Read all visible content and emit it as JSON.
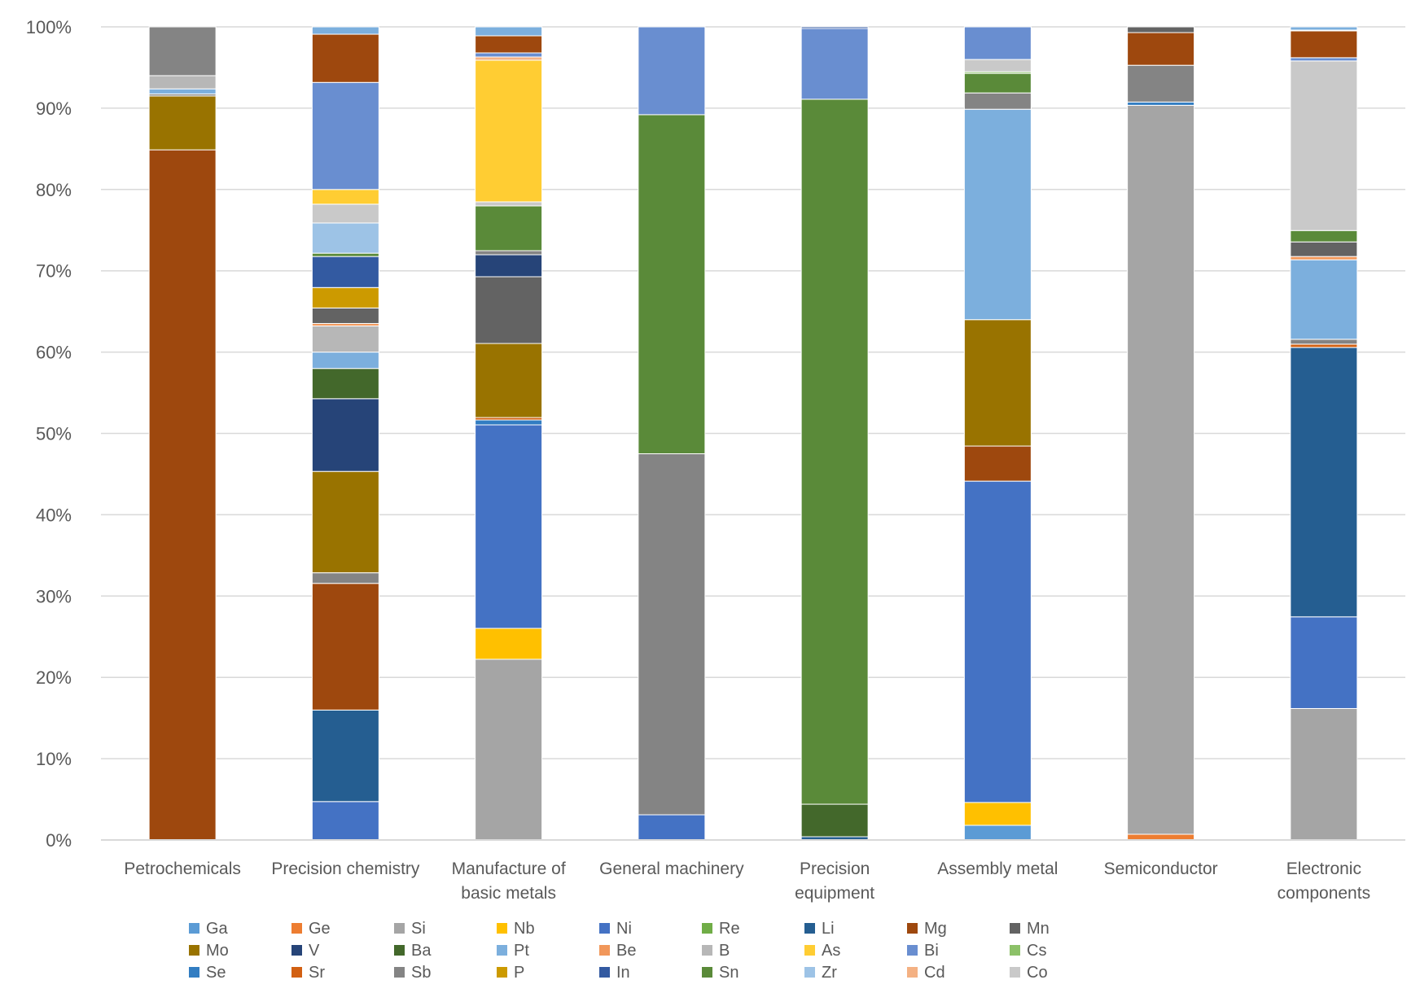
{
  "chart_data": {
    "type": "bar",
    "stacked": true,
    "normalized": true,
    "title": "",
    "xlabel": "",
    "ylabel": "",
    "ylim": [
      0,
      100
    ],
    "yticks": [
      "0%",
      "10%",
      "20%",
      "30%",
      "40%",
      "50%",
      "60%",
      "70%",
      "80%",
      "90%",
      "100%"
    ],
    "grid": true,
    "legend_position": "bottom",
    "categories": [
      [
        "Petrochemicals"
      ],
      [
        "Precision chemistry"
      ],
      [
        "Manufacture of",
        "basic metals"
      ],
      [
        "General machinery"
      ],
      [
        "Precision",
        "equipment"
      ],
      [
        "Assembly metal"
      ],
      [
        "Semiconductor"
      ],
      [
        "Electronic",
        "components"
      ]
    ],
    "series": [
      {
        "name": "Ga",
        "color": "#5B9BD5",
        "values": [
          0,
          0,
          0,
          0,
          0,
          1.8,
          0,
          0
        ]
      },
      {
        "name": "Ge",
        "color": "#ED7D31",
        "values": [
          0,
          0,
          0,
          0,
          0,
          0,
          0.7,
          0
        ]
      },
      {
        "name": "Si",
        "color": "#A5A5A5",
        "values": [
          0,
          0,
          22.2,
          0,
          0,
          0,
          89.2,
          16.2
        ]
      },
      {
        "name": "Nb",
        "color": "#FFC000",
        "values": [
          0,
          0,
          3.8,
          0,
          0,
          2.8,
          0,
          0
        ]
      },
      {
        "name": "Ni",
        "color": "#4472C4",
        "values": [
          0,
          4.7,
          25.0,
          3.1,
          0,
          39.4,
          0,
          11.3
        ]
      },
      {
        "name": "Re",
        "color": "#70AD47",
        "values": [
          0,
          0,
          0,
          0,
          0,
          0,
          0,
          0
        ]
      },
      {
        "name": "Li",
        "color": "#255E91",
        "values": [
          0,
          11.2,
          0,
          0,
          0.4,
          0,
          0,
          33.2
        ]
      },
      {
        "name": "Mg",
        "color": "#9E480E",
        "values": [
          67.9,
          15.5,
          0,
          0,
          0,
          4.3,
          0,
          0
        ]
      },
      {
        "name": "Mn",
        "color": "#636363",
        "values": [
          0,
          0,
          0,
          0,
          0,
          0,
          0,
          0
        ]
      },
      {
        "name": "Mo",
        "color": "#997300",
        "values": [
          5.3,
          0,
          0,
          0,
          0,
          15.5,
          0,
          0
        ]
      },
      {
        "name": "V",
        "color": "#264478",
        "values": [
          0,
          0,
          0,
          0,
          0,
          0,
          0,
          0
        ]
      },
      {
        "name": "Ba",
        "color": "#43682B",
        "values": [
          0,
          0,
          0,
          0,
          4.0,
          0,
          0,
          0
        ]
      },
      {
        "name": "Pt",
        "color": "#7CAFDD",
        "values": [
          0,
          0,
          0,
          0,
          0,
          0,
          0,
          0
        ]
      },
      {
        "name": "Be",
        "color": "#F1975A",
        "values": [
          0,
          0,
          0,
          0,
          0,
          0,
          0,
          0
        ]
      },
      {
        "name": "B",
        "color": "#B7B7B7",
        "values": [
          0,
          0,
          0,
          0,
          0,
          0,
          0,
          0
        ]
      },
      {
        "name": "As",
        "color": "#FFCD33",
        "values": [
          0,
          0,
          0,
          0,
          0,
          0,
          0,
          0
        ]
      },
      {
        "name": "Bi",
        "color": "#698ED0",
        "values": [
          0,
          0,
          0,
          0,
          0,
          0,
          0,
          0
        ]
      },
      {
        "name": "Cs",
        "color": "#8CC168",
        "values": [
          0,
          0,
          0,
          0,
          0,
          0,
          0,
          0
        ]
      },
      {
        "name": "Se",
        "color": "#327DC2",
        "values": [
          0,
          0,
          0.6,
          0,
          0,
          0,
          0.4,
          0
        ]
      },
      {
        "name": "Sr",
        "color": "#D26012",
        "values": [
          0,
          0,
          0.3,
          0,
          0,
          0,
          0,
          0.4
        ]
      },
      {
        "name": "Sb",
        "color": "#848484",
        "values": [
          0.2,
          1.3,
          0,
          44.4,
          0,
          0,
          0,
          0.6
        ]
      },
      {
        "name": "P",
        "color": "#CC9A00",
        "values": [
          0,
          0,
          0,
          0,
          0,
          0,
          0,
          0
        ]
      },
      {
        "name": "In",
        "color": "#335AA1",
        "values": [
          0,
          0,
          0,
          0,
          0,
          0,
          0,
          0
        ]
      },
      {
        "name": "Sn",
        "color": "#5A8A39",
        "values": [
          0,
          0,
          0,
          41.7,
          86.7,
          0,
          0,
          0
        ]
      },
      {
        "name": "Zr",
        "color": "#9DC3E6",
        "values": [
          0,
          0,
          0,
          0,
          0,
          0,
          0,
          0
        ]
      },
      {
        "name": "Cd",
        "color": "#F4B183",
        "values": [
          0,
          0,
          0,
          0,
          0,
          0,
          0,
          0
        ]
      },
      {
        "name": "Co",
        "color": "#C9C9C9",
        "values": [
          0,
          0,
          0,
          0,
          0,
          0,
          0,
          0
        ]
      },
      {
        "name": "Mo (2)",
        "color": "#997300",
        "values": [
          0,
          12.4,
          9.1,
          0,
          0,
          0,
          0,
          0
        ],
        "legend": false
      },
      {
        "name": "V (2)",
        "color": "#264478",
        "values": [
          0,
          8.9,
          0,
          0,
          0,
          0,
          0,
          0
        ],
        "legend": false
      },
      {
        "name": "Ba (2)",
        "color": "#43682B",
        "values": [
          0,
          3.7,
          0,
          0,
          0,
          0,
          0,
          0
        ],
        "legend": false
      },
      {
        "name": "Pt (2)",
        "color": "#7CAFDD",
        "values": [
          0.5,
          2.0,
          0,
          0,
          0,
          25.8,
          0,
          9.8
        ],
        "legend": false
      },
      {
        "name": "B (2)",
        "color": "#B7B7B7",
        "values": [
          0,
          3.2,
          0,
          0,
          0,
          0,
          0,
          0
        ],
        "legend": false
      },
      {
        "name": "Be (2)",
        "color": "#F1975A",
        "values": [
          0,
          0.3,
          0,
          0,
          0,
          0,
          0,
          0.4
        ],
        "legend": false
      },
      {
        "name": "Mn (2)",
        "color": "#636363",
        "values": [
          0,
          1.9,
          8.2,
          0,
          0,
          0,
          0,
          1.8
        ],
        "legend": false
      },
      {
        "name": "P (2)",
        "color": "#CC9A00",
        "values": [
          0,
          2.5,
          0,
          0,
          0,
          0,
          0,
          0
        ],
        "legend": false
      },
      {
        "name": "In (2)",
        "color": "#335AA1",
        "values": [
          0,
          3.8,
          0,
          0,
          0,
          0,
          0,
          0
        ],
        "legend": false
      },
      {
        "name": "V (3)",
        "color": "#264478",
        "values": [
          0,
          0,
          2.7,
          0,
          0,
          0,
          0,
          0
        ],
        "legend": false
      },
      {
        "name": "Sb (2)",
        "color": "#848484",
        "values": [
          0,
          0,
          0.5,
          0,
          0,
          2.0,
          4.5,
          0
        ],
        "legend": false
      },
      {
        "name": "Sn (2)",
        "color": "#5A8A39",
        "values": [
          0,
          0.4,
          5.5,
          0,
          0,
          2.4,
          0,
          1.4
        ],
        "legend": false
      },
      {
        "name": "Cs (2)",
        "color": "#8CC168",
        "values": [
          0,
          0,
          0,
          0,
          0,
          0.2,
          0,
          0
        ],
        "legend": false
      },
      {
        "name": "Zr (2)",
        "color": "#9DC3E6",
        "values": [
          0,
          3.7,
          0,
          0,
          0,
          0,
          0,
          0
        ],
        "legend": false
      },
      {
        "name": "Co (2)",
        "color": "#C9C9C9",
        "values": [
          0,
          2.3,
          0.5,
          0,
          0,
          1.5,
          0,
          20.9
        ],
        "legend": false
      },
      {
        "name": "As (2)",
        "color": "#FFCD33",
        "values": [
          0,
          1.8,
          17.4,
          0,
          0,
          0,
          0,
          0
        ],
        "legend": false
      },
      {
        "name": "Cd (2)",
        "color": "#F4B183",
        "values": [
          0,
          0,
          0.4,
          0,
          0,
          0,
          0,
          0
        ],
        "legend": false
      },
      {
        "name": "Bi (2)",
        "color": "#698ED0",
        "values": [
          0,
          13.1,
          0.5,
          10.8,
          8.7,
          4.0,
          0,
          0.4
        ],
        "legend": false
      },
      {
        "name": "Mg (2)",
        "color": "#9E480E",
        "values": [
          0,
          5.9,
          2.1,
          0,
          0,
          0,
          4.0,
          3.3
        ],
        "legend": false
      },
      {
        "name": "Mn (3)",
        "color": "#636363",
        "values": [
          0,
          0,
          0,
          0,
          0,
          0,
          0.7,
          0
        ],
        "legend": false
      },
      {
        "name": "Zr (3)",
        "color": "#9DC3E6",
        "values": [
          0,
          0,
          0,
          0,
          0,
          0,
          0,
          0.1
        ],
        "legend": false
      },
      {
        "name": "Pt (3)",
        "color": "#7CAFDD",
        "values": [
          0,
          0.9,
          1.1,
          0,
          0,
          0,
          0,
          0.4
        ],
        "legend": false
      },
      {
        "name": "In (3)",
        "color": "#335AA1",
        "values": [
          0,
          0,
          0,
          0,
          0.2,
          0,
          0,
          0
        ],
        "legend": false
      },
      {
        "name": "B (3)",
        "color": "#B7B7B7",
        "values": [
          1.3,
          0,
          0,
          0,
          0,
          0,
          0,
          0
        ],
        "legend": false
      },
      {
        "name": "Sb (3)",
        "color": "#848484",
        "values": [
          4.8,
          0,
          0,
          0,
          0,
          0,
          0,
          0
        ],
        "legend": false
      }
    ]
  }
}
